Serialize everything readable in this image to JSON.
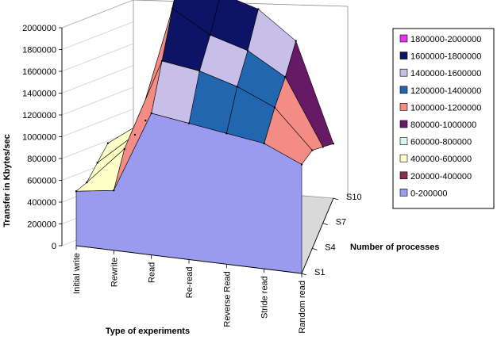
{
  "chart_data": {
    "type": "surface-3d",
    "title": "",
    "ylabel": "Transfer in Kbytes/sec",
    "xlabel": "Type of experiments",
    "zlabel": "Number of processes",
    "ylim": [
      0,
      2000000
    ],
    "y_ticks": [
      "0",
      "200000",
      "400000",
      "600000",
      "800000",
      "1000000",
      "1200000",
      "1400000",
      "1600000",
      "1800000",
      "2000000"
    ],
    "categories": [
      "Initial write",
      "Rewrite",
      "Read",
      "Re-read",
      "Reverse Read",
      "Stride read",
      "Random read"
    ],
    "z_ticks": [
      "S1",
      "S4",
      "S7",
      "S10"
    ],
    "legend_position": "right",
    "legend": [
      {
        "label": "1800000-2000000",
        "color": "#e633e6"
      },
      {
        "label": "1600000-1800000",
        "color": "#0d1466"
      },
      {
        "label": "1400000-1600000",
        "color": "#c8bfe8"
      },
      {
        "label": "1200000-1400000",
        "color": "#2266b0"
      },
      {
        "label": "1000000-1200000",
        "color": "#f28c84"
      },
      {
        "label": "800000-1000000",
        "color": "#661a66"
      },
      {
        "label": "600000-800000",
        "color": "#d4f6f6"
      },
      {
        "label": "400000-600000",
        "color": "#ffffc8"
      },
      {
        "label": "200000-400000",
        "color": "#8a2f4f"
      },
      {
        "label": "0-200000",
        "color": "#9a9aef"
      }
    ],
    "series": [
      {
        "name": "S1",
        "values": [
          500000,
          550000,
          1300000,
          1250000,
          1200000,
          1150000,
          1000000
        ]
      },
      {
        "name": "S4",
        "values": [
          350000,
          700000,
          1550000,
          1500000,
          1400000,
          1250000,
          900000
        ]
      },
      {
        "name": "S7",
        "values": [
          300000,
          600000,
          1800000,
          1600000,
          1500000,
          1300000,
          700000
        ]
      },
      {
        "name": "S10",
        "values": [
          250000,
          500000,
          2000000,
          1750000,
          1650000,
          1400000,
          500000
        ]
      }
    ]
  }
}
